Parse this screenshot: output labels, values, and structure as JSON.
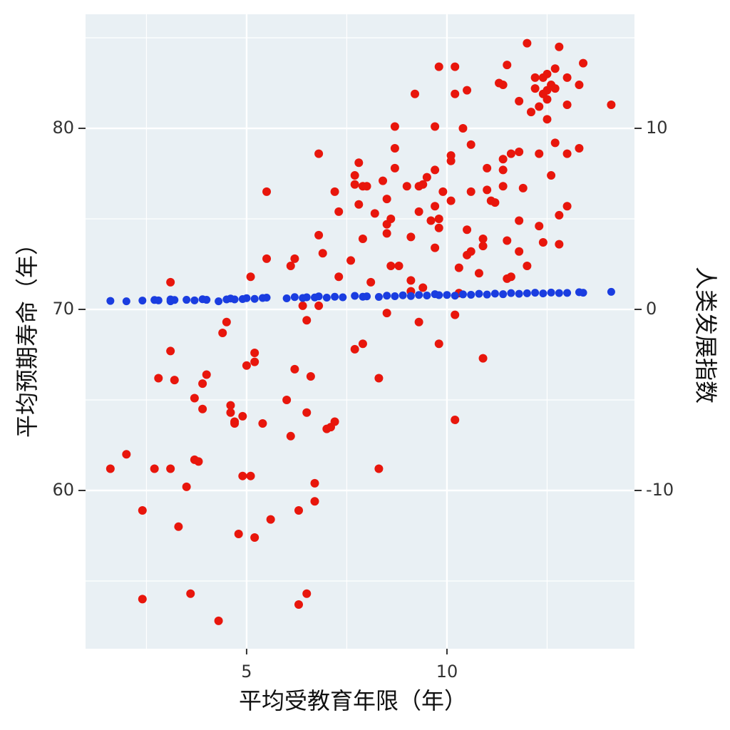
{
  "chart_data": {
    "type": "scatter",
    "x_label": "平均受教育年限（年）",
    "y_label": "平均预期寿命（年）",
    "y2_label": "人类发展指数",
    "xlim": [
      0.98,
      14.68
    ],
    "ylim": [
      51.26,
      86.3
    ],
    "y2lim": [
      -18.74,
      16.3
    ],
    "xticks": [
      5,
      10
    ],
    "yticks": [
      60,
      70,
      80
    ],
    "y2ticks": [
      -10,
      0,
      10
    ],
    "minor_xticks": [
      2.5,
      7.5,
      12.5
    ],
    "minor_yticks": [
      55,
      65,
      75,
      85
    ],
    "grid": true,
    "background": "#e9f0f4",
    "series": [
      {
        "color": "#e8160c",
        "x": [
          1.6,
          2.0,
          2.4,
          2.4,
          2.7,
          2.8,
          3.1,
          3.1,
          3.1,
          3.2,
          3.3,
          3.5,
          3.6,
          3.7,
          3.7,
          3.8,
          3.9,
          3.9,
          4.0,
          4.3,
          4.4,
          4.5,
          4.6,
          4.6,
          4.7,
          4.7,
          4.8,
          4.9,
          4.9,
          5.0,
          5.1,
          5.1,
          5.2,
          5.2,
          5.2,
          5.4,
          5.5,
          5.5,
          5.6,
          6.0,
          6.1,
          6.1,
          6.2,
          6.2,
          6.3,
          6.3,
          6.4,
          6.5,
          6.5,
          6.5,
          6.6,
          6.7,
          6.7,
          6.8,
          6.8,
          6.8,
          6.9,
          7.0,
          7.1,
          7.2,
          7.2,
          7.3,
          7.3,
          7.6,
          7.7,
          7.7,
          7.7,
          7.8,
          7.8,
          7.9,
          7.9,
          7.9,
          8.0,
          8.1,
          8.2,
          8.3,
          8.3,
          8.4,
          8.5,
          8.5,
          8.5,
          8.5,
          8.6,
          8.6,
          8.7,
          8.7,
          8.7,
          8.8,
          9.0,
          9.1,
          9.1,
          9.1,
          9.2,
          9.3,
          9.3,
          9.3,
          9.4,
          9.4,
          9.5,
          9.6,
          9.7,
          9.7,
          9.7,
          9.7,
          9.8,
          9.8,
          9.8,
          9.8,
          9.9,
          10.1,
          10.1,
          10.1,
          10.2,
          10.2,
          10.2,
          10.2,
          10.3,
          10.3,
          10.4,
          10.5,
          10.5,
          10.5,
          10.6,
          10.6,
          10.6,
          10.8,
          10.9,
          10.9,
          10.9,
          11.0,
          11.0,
          11.1,
          11.2,
          11.3,
          11.4,
          11.4,
          11.4,
          11.4,
          11.5,
          11.5,
          11.5,
          11.6,
          11.6,
          11.8,
          11.8,
          11.8,
          11.8,
          11.9,
          12.0,
          12.0,
          12.1,
          12.2,
          12.2,
          12.3,
          12.3,
          12.4,
          12.3,
          12.4,
          12.4,
          12.5,
          12.5,
          12.5,
          12.5,
          12.6,
          12.6,
          12.7,
          12.7,
          12.7,
          12.8,
          12.8,
          12.8,
          13.0,
          13.0,
          13.0,
          13.0,
          13.3,
          13.4,
          13.3,
          14.1
        ],
        "values": [
          61.2,
          62.0,
          58.9,
          54.0,
          61.2,
          66.2,
          61.2,
          71.5,
          67.7,
          66.1,
          58.0,
          60.2,
          54.3,
          65.1,
          61.7,
          61.6,
          65.9,
          64.5,
          66.4,
          52.8,
          68.7,
          69.3,
          64.7,
          64.3,
          63.8,
          63.7,
          57.6,
          64.1,
          60.8,
          66.9,
          71.8,
          60.8,
          67.6,
          67.1,
          57.4,
          63.7,
          76.5,
          72.8,
          58.4,
          65.0,
          72.4,
          63.0,
          66.7,
          72.8,
          58.9,
          53.7,
          70.2,
          54.3,
          69.4,
          64.3,
          66.3,
          59.4,
          60.4,
          78.6,
          74.1,
          70.2,
          73.1,
          63.4,
          63.5,
          63.8,
          76.5,
          75.4,
          71.8,
          72.7,
          67.8,
          77.4,
          76.9,
          75.8,
          78.1,
          68.1,
          73.9,
          76.8,
          76.8,
          71.5,
          75.3,
          66.2,
          61.2,
          77.1,
          74.7,
          74.2,
          76.1,
          69.8,
          75.0,
          72.4,
          80.1,
          78.9,
          77.8,
          72.4,
          76.8,
          71.0,
          74.0,
          71.6,
          81.9,
          69.3,
          76.8,
          75.4,
          76.9,
          71.2,
          77.3,
          74.9,
          73.4,
          80.1,
          77.7,
          75.7,
          68.1,
          83.4,
          74.5,
          75.0,
          76.5,
          78.5,
          78.2,
          76.0,
          63.9,
          69.7,
          83.4,
          81.9,
          72.3,
          70.9,
          80.0,
          82.1,
          74.4,
          73.0,
          73.2,
          79.1,
          76.5,
          72.0,
          73.9,
          73.5,
          67.3,
          77.8,
          76.6,
          76.0,
          75.9,
          82.5,
          82.4,
          77.7,
          78.3,
          76.8,
          83.5,
          73.8,
          71.7,
          71.8,
          78.6,
          81.5,
          74.9,
          73.2,
          78.7,
          76.7,
          72.4,
          84.7,
          80.9,
          82.8,
          82.2,
          78.6,
          81.2,
          73.7,
          74.6,
          81.9,
          82.8,
          83.0,
          81.6,
          82.1,
          80.5,
          82.4,
          77.4,
          82.2,
          79.2,
          83.3,
          75.2,
          84.5,
          73.6,
          82.8,
          81.3,
          78.6,
          75.7,
          82.4,
          83.6,
          78.9,
          81.3
        ]
      },
      {
        "color": "#1a3de0",
        "axis": "y2",
        "x": [
          1.6,
          2.0,
          2.4,
          2.7,
          2.8,
          3.1,
          3.1,
          3.2,
          3.5,
          3.7,
          3.9,
          4.0,
          4.3,
          4.5,
          4.6,
          4.7,
          4.9,
          5.0,
          5.2,
          5.4,
          5.5,
          6.0,
          6.2,
          6.4,
          6.5,
          6.7,
          6.8,
          7.0,
          7.2,
          7.4,
          7.7,
          7.9,
          8.0,
          8.3,
          8.5,
          8.7,
          8.9,
          9.1,
          9.3,
          9.5,
          9.7,
          9.8,
          10.0,
          10.2,
          10.4,
          10.6,
          10.8,
          11.0,
          11.2,
          11.4,
          11.6,
          11.8,
          12.0,
          12.2,
          12.4,
          12.6,
          12.8,
          13.0,
          13.3,
          13.4,
          14.1
        ],
        "values": [
          0.47,
          0.45,
          0.49,
          0.52,
          0.5,
          0.55,
          0.45,
          0.52,
          0.53,
          0.5,
          0.56,
          0.53,
          0.45,
          0.55,
          0.6,
          0.55,
          0.57,
          0.62,
          0.58,
          0.63,
          0.65,
          0.61,
          0.68,
          0.63,
          0.67,
          0.66,
          0.72,
          0.65,
          0.7,
          0.67,
          0.75,
          0.7,
          0.72,
          0.69,
          0.76,
          0.73,
          0.78,
          0.74,
          0.8,
          0.77,
          0.84,
          0.79,
          0.8,
          0.76,
          0.83,
          0.81,
          0.86,
          0.82,
          0.87,
          0.84,
          0.9,
          0.86,
          0.89,
          0.92,
          0.88,
          0.93,
          0.9,
          0.91,
          0.95,
          0.92,
          0.97
        ]
      }
    ]
  }
}
